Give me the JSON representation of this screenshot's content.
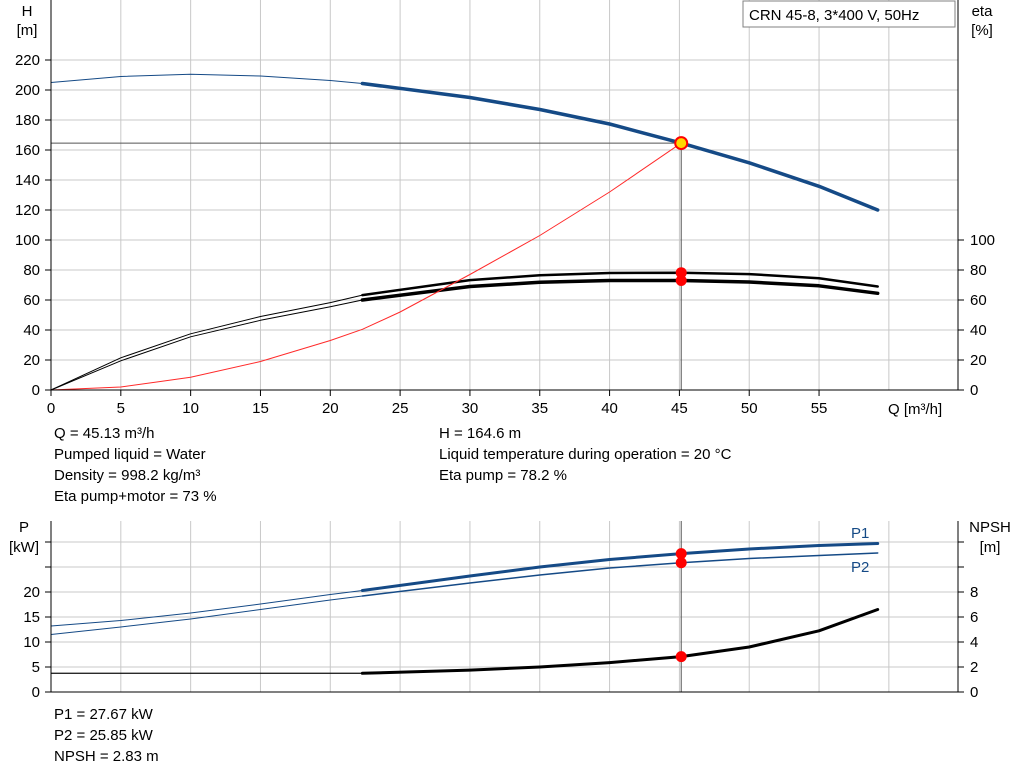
{
  "title_box": "CRN 45-8, 3*400 V, 50Hz",
  "colors": {
    "curve_blue": "#154a86",
    "grid": "#c8c8c8",
    "marker_red": "#ff0000",
    "duty_fill": "#ffd800",
    "eta_red": "#ff2a2a",
    "black": "#000000"
  },
  "info": {
    "q": "Q = 45.13 m³/h",
    "liquid": "Pumped liquid = Water",
    "density": "Density = 998.2 kg/m³",
    "eta_pm": "Eta pump+motor = 73 %",
    "h": "H = 164.6 m",
    "temp": "Liquid temperature during operation = 20 °C",
    "eta_pump": "Eta pump = 78.2 %"
  },
  "info2": {
    "p1": "P1 = 27.67 kW",
    "p2": "P2 = 25.85 kW",
    "npsh": "NPSH = 2.83 m"
  },
  "chart_data": [
    {
      "type": "line",
      "ylabel": [
        "H",
        "[m]"
      ],
      "y2label": [
        "eta",
        "[%]"
      ],
      "xlabel": "Q [m³/h]",
      "xlim": [
        0,
        64
      ],
      "ylim": [
        0,
        220
      ],
      "y2lim": [
        0,
        100
      ],
      "x_ticks": [
        0,
        5,
        10,
        15,
        20,
        25,
        30,
        35,
        40,
        45,
        50,
        55
      ],
      "y_ticks": [
        0,
        20,
        40,
        60,
        80,
        100,
        120,
        140,
        160,
        180,
        200,
        220
      ],
      "y2_ticks": [
        0,
        20,
        40,
        60,
        80,
        100
      ],
      "grid": true,
      "duty_point": {
        "x": 45.13,
        "h": 164.6,
        "eta_pump": 78.2,
        "eta_pm": 73
      },
      "series": [
        {
          "color": "#154a86",
          "axis": "left",
          "split_x": 22.3,
          "thin_width": 1,
          "thick_width": 3.5,
          "x": [
            0,
            5,
            10,
            15,
            20,
            22.3,
            30,
            35,
            40,
            45.13,
            50,
            55,
            59.2
          ],
          "values": [
            205,
            209,
            210.5,
            209.3,
            206.3,
            204.3,
            195,
            187,
            177.3,
            164.6,
            151.5,
            135.8,
            120
          ]
        },
        {
          "color": "#000000",
          "axis": "right",
          "split_x": 22.3,
          "thin_width": 1,
          "thick_width": 2.5,
          "x": [
            0,
            5,
            10,
            15,
            20,
            22.3,
            30,
            35,
            40,
            45.13,
            50,
            55,
            59.2
          ],
          "values": [
            0,
            21.5,
            37.5,
            49,
            58.3,
            63.3,
            73.3,
            76.5,
            78,
            78.2,
            77.3,
            74.5,
            69
          ]
        },
        {
          "color": "#000000",
          "axis": "right",
          "split_x": 22.3,
          "thin_width": 1,
          "thick_width": 3.5,
          "x": [
            0,
            5,
            10,
            15,
            20,
            22.3,
            30,
            35,
            40,
            45.13,
            50,
            55,
            59.2
          ],
          "values": [
            0,
            19.5,
            35.5,
            46.5,
            55.5,
            60,
            69,
            71.8,
            73,
            73,
            72,
            69.5,
            64.5
          ]
        },
        {
          "color": "#ff2a2a",
          "axis": "left",
          "split_x": 0,
          "thin_width": 1,
          "thick_width": 1,
          "x": [
            0,
            5,
            10,
            15,
            20,
            22.3,
            25,
            30,
            35,
            40,
            45.13
          ],
          "values": [
            0,
            2,
            8.5,
            19,
            33,
            40.5,
            52,
            77,
            103,
            132,
            164.6
          ]
        }
      ]
    },
    {
      "type": "line",
      "ylabel": [
        "P",
        "[kW]"
      ],
      "y2label": [
        "NPSH",
        "[m]"
      ],
      "xlim": [
        0,
        64
      ],
      "ylim": [
        0,
        32
      ],
      "y2lim": [
        0,
        16
      ],
      "y_ticks": [
        0,
        5,
        10,
        15,
        20
      ],
      "y2_ticks": [
        0,
        2,
        4,
        6,
        8
      ],
      "grid": true,
      "series": [
        {
          "name": "P1",
          "color": "#154a86",
          "axis": "left",
          "split_x": 22.3,
          "thin_width": 1,
          "thick_width": 3,
          "x": [
            0,
            5,
            10,
            15,
            20,
            22.3,
            30,
            35,
            40,
            45.13,
            50,
            55,
            59.2
          ],
          "values": [
            13.2,
            14.3,
            15.8,
            17.6,
            19.5,
            20.3,
            23.2,
            25,
            26.5,
            27.67,
            28.6,
            29.3,
            29.7
          ]
        },
        {
          "name": "P2",
          "color": "#154a86",
          "axis": "left",
          "split_x": 22.3,
          "thin_width": 1,
          "thick_width": 1.5,
          "x": [
            0,
            5,
            10,
            15,
            20,
            22.3,
            30,
            35,
            40,
            45.13,
            50,
            55,
            59.2
          ],
          "values": [
            11.5,
            13,
            14.6,
            16.5,
            18.4,
            19.2,
            21.8,
            23.4,
            24.8,
            25.85,
            26.7,
            27.3,
            27.8
          ]
        },
        {
          "color": "#000000",
          "axis": "right",
          "split_x": 22.3,
          "thin_width": 1,
          "thick_width": 3,
          "x": [
            0,
            22.3,
            30,
            35,
            40,
            45.13,
            50,
            55,
            59.2
          ],
          "values": [
            1.5,
            1.5,
            1.75,
            2.0,
            2.35,
            2.83,
            3.6,
            4.9,
            6.6
          ]
        }
      ]
    }
  ]
}
